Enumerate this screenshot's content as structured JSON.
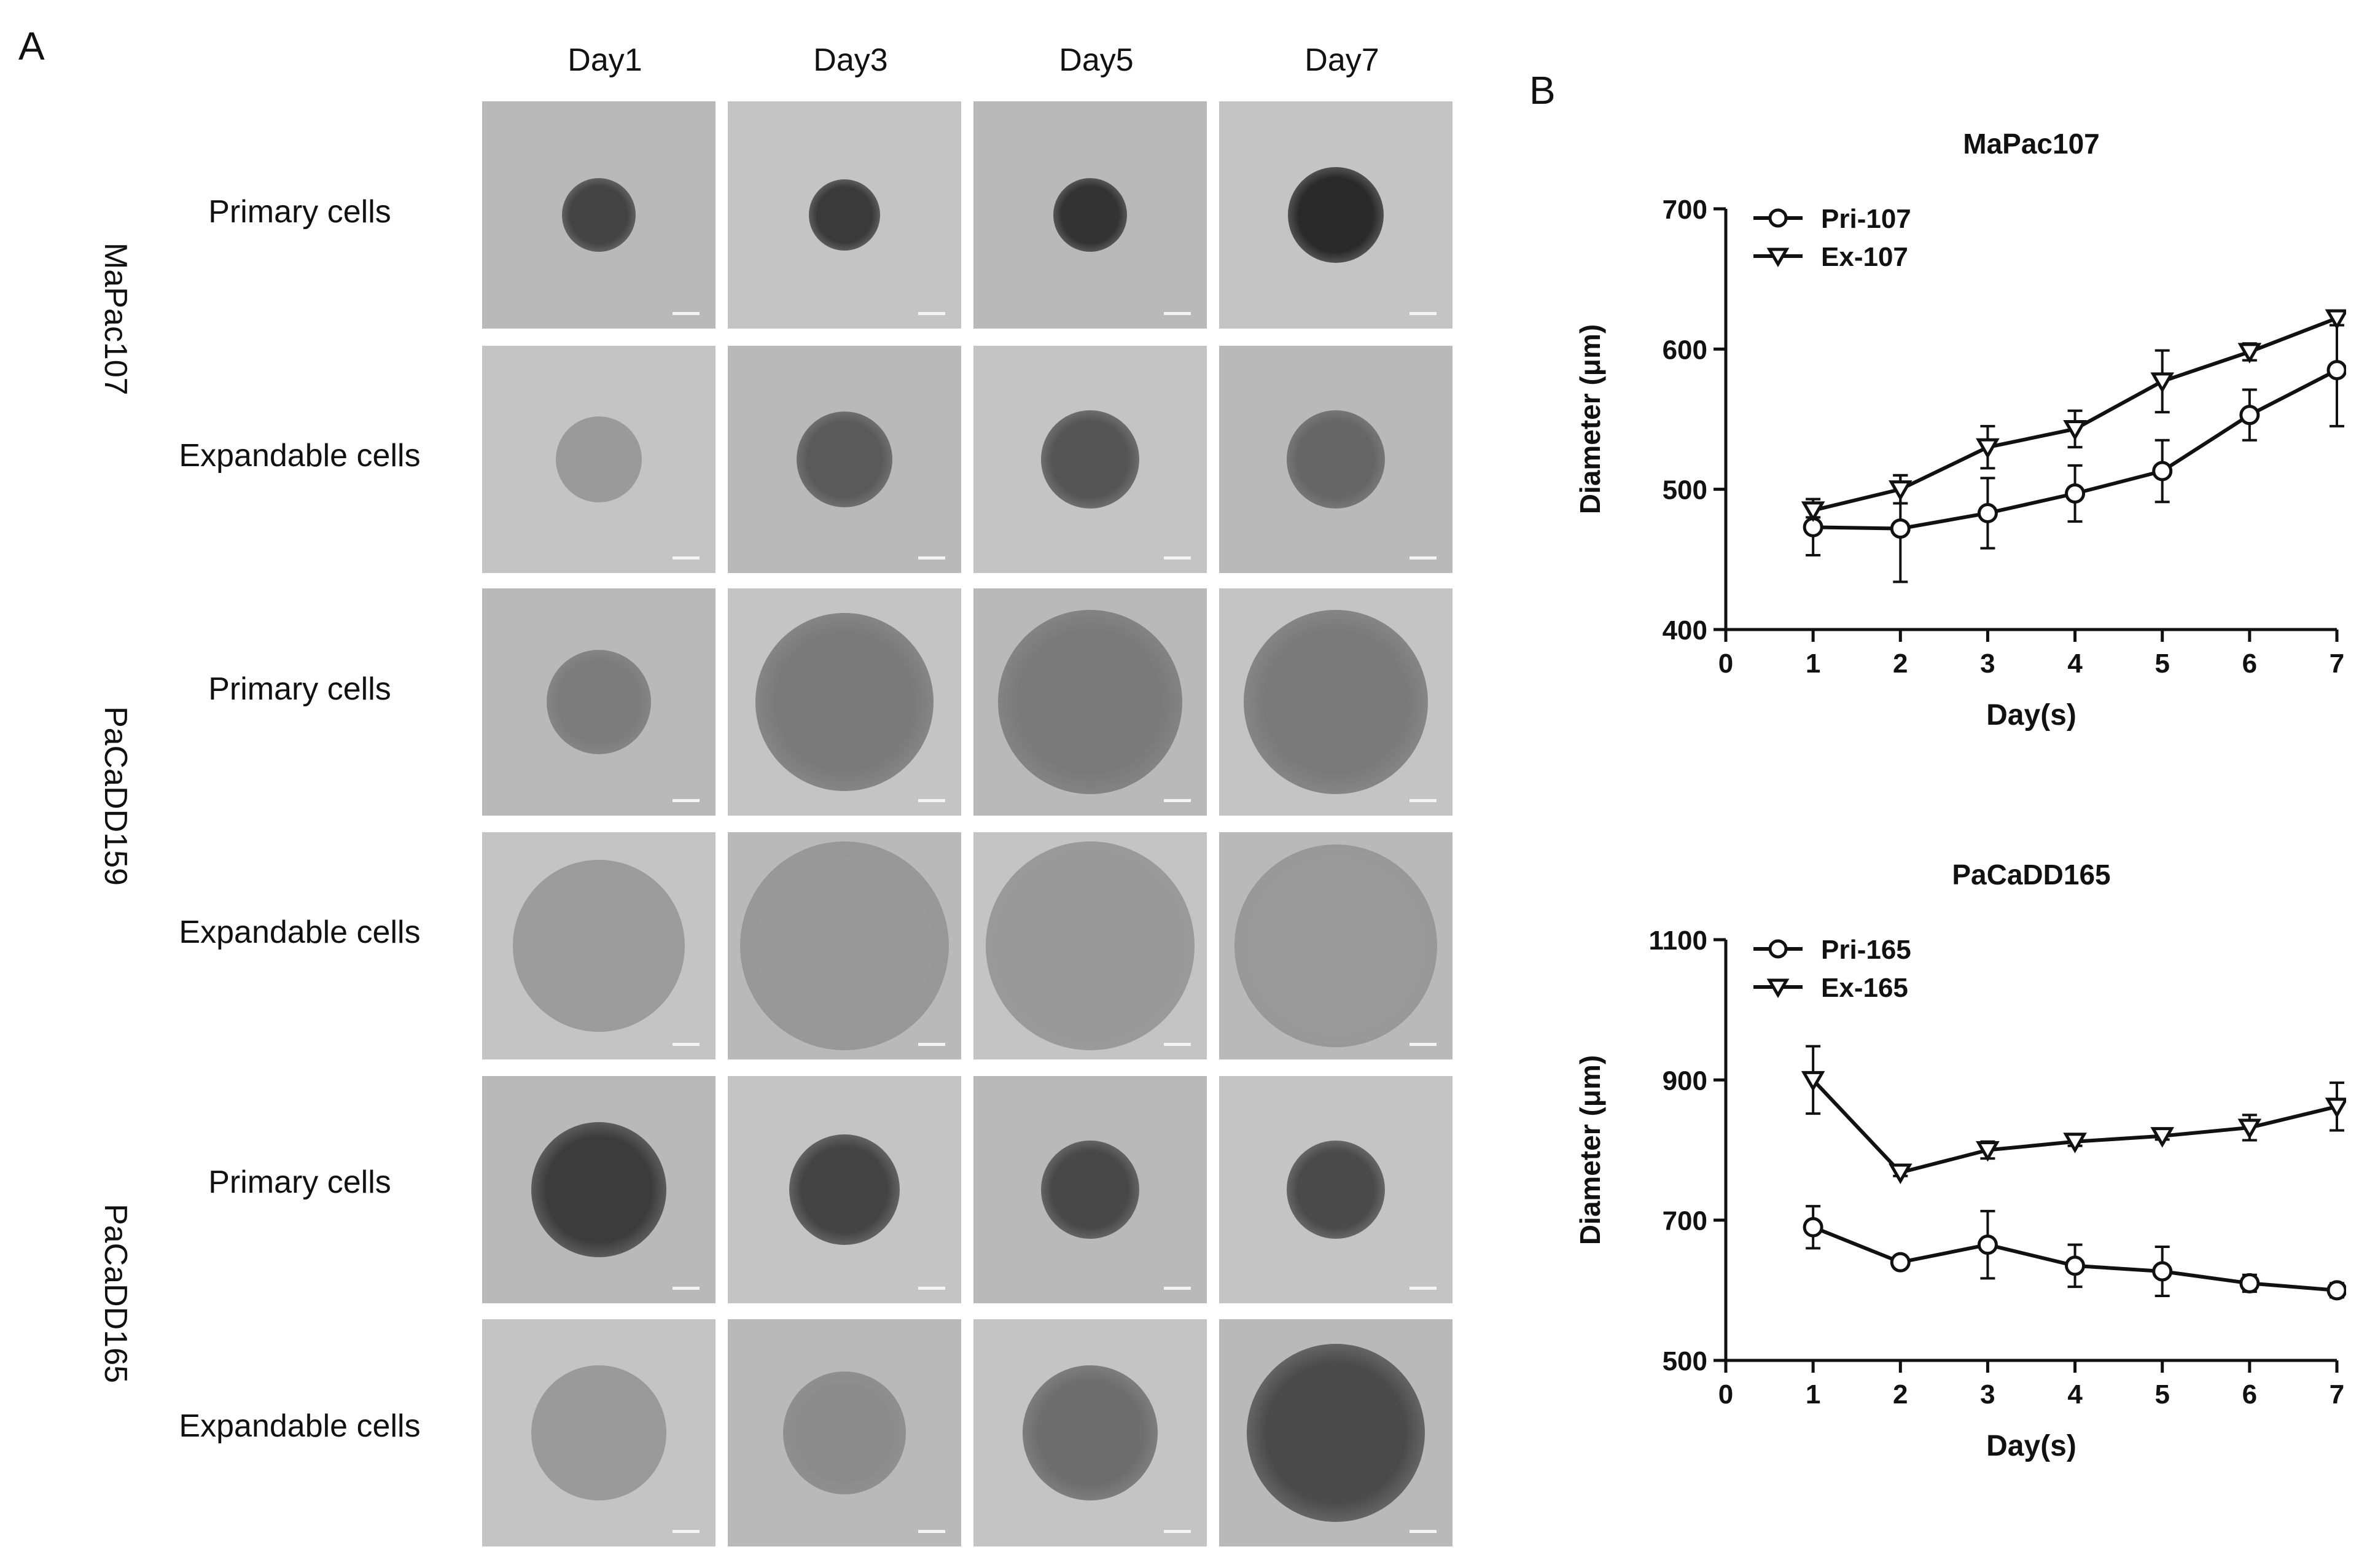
{
  "panel_a": {
    "letter": "A",
    "days": [
      "Day1",
      "Day3",
      "Day5",
      "Day7"
    ],
    "lines": [
      {
        "name": "MaPac107",
        "rows": [
          "Primary cells",
          "Expandable cells"
        ]
      },
      {
        "name": "PaCaDD159",
        "rows": [
          "Primary cells",
          "Expandable cells"
        ]
      },
      {
        "name": "PaCaDD165",
        "rows": [
          "Primary cells",
          "Expandable cells"
        ]
      }
    ]
  },
  "panel_b": {
    "letter": "B"
  },
  "colors": {
    "line": "#111111",
    "tile_bg": "#b9b9b9",
    "tile_bg_alt": "#c4c4c4"
  },
  "chart_data": [
    {
      "type": "line",
      "title": "MaPac107",
      "xlabel": "Day(s)",
      "ylabel": "Diameter (μm)",
      "xlim": [
        0,
        7
      ],
      "ylim": [
        400,
        700
      ],
      "xticks": [
        0,
        1,
        2,
        3,
        4,
        5,
        6,
        7
      ],
      "yticks": [
        400,
        500,
        600,
        700
      ],
      "x": [
        1,
        2,
        3,
        4,
        5,
        6,
        7
      ],
      "legend_position": "top-left",
      "series": [
        {
          "name": "Pri-107",
          "marker": "circle",
          "values": [
            473,
            472,
            483,
            497,
            513,
            553,
            585
          ],
          "errors": [
            20,
            38,
            25,
            20,
            22,
            18,
            40
          ]
        },
        {
          "name": "Ex-107",
          "marker": "triangle-down",
          "values": [
            485,
            500,
            530,
            543,
            577,
            598,
            622
          ],
          "errors": [
            5,
            10,
            15,
            13,
            22,
            6,
            5
          ]
        }
      ]
    },
    {
      "type": "line",
      "title": "PaCaDD165",
      "xlabel": "Day(s)",
      "ylabel": "Diameter (μm)",
      "xlim": [
        0,
        7
      ],
      "ylim": [
        500,
        1100
      ],
      "xticks": [
        0,
        1,
        2,
        3,
        4,
        5,
        6,
        7
      ],
      "yticks": [
        500,
        700,
        900,
        1100
      ],
      "x": [
        1,
        2,
        3,
        4,
        5,
        6,
        7
      ],
      "legend_position": "top-left",
      "series": [
        {
          "name": "Pri-165",
          "marker": "circle",
          "values": [
            690,
            640,
            665,
            635,
            627,
            610,
            600
          ],
          "errors": [
            30,
            5,
            48,
            30,
            35,
            12,
            10
          ]
        },
        {
          "name": "Ex-165",
          "marker": "triangle-down",
          "values": [
            900,
            768,
            800,
            812,
            820,
            832,
            862
          ],
          "errors": [
            48,
            5,
            12,
            6,
            5,
            18,
            34
          ]
        }
      ]
    }
  ]
}
